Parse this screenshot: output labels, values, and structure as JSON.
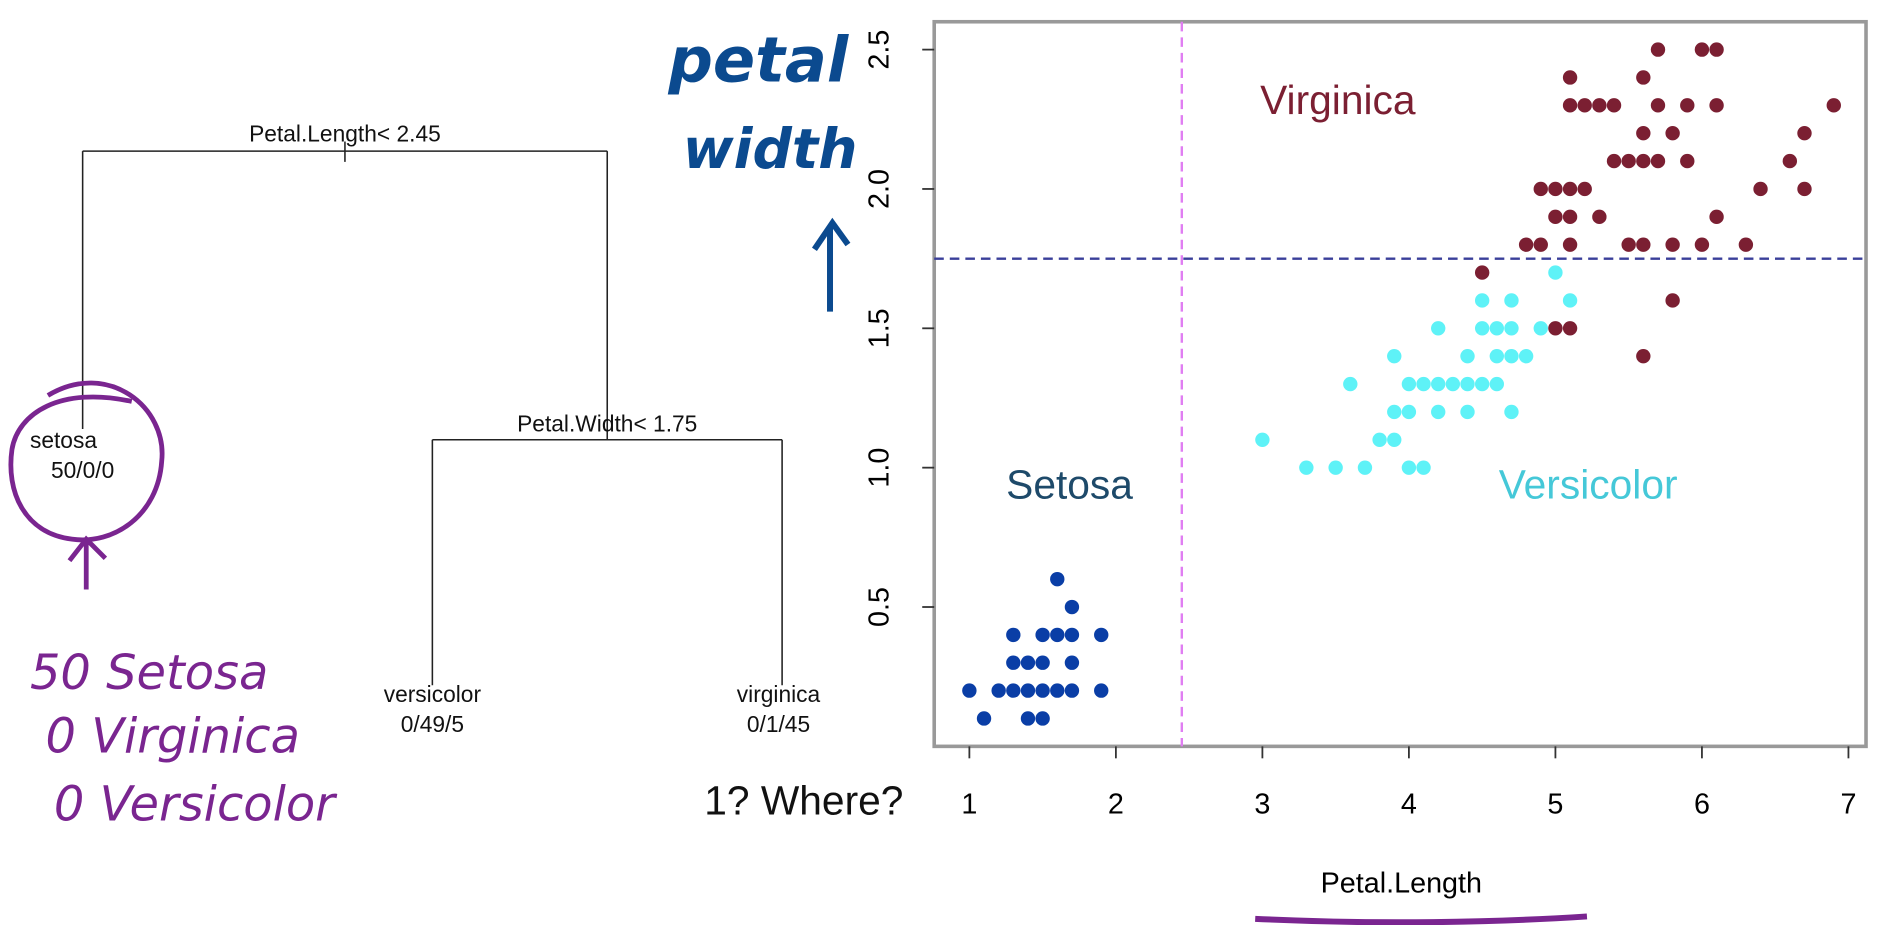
{
  "chart_data": {
    "type": "scatter",
    "xlabel": "Petal.Length",
    "xlim": [
      0.76,
      7.12
    ],
    "ylim": [
      0,
      2.6
    ],
    "xticks": [
      1,
      2,
      3,
      4,
      5,
      6,
      7
    ],
    "yticks": [
      0.5,
      1.0,
      1.5,
      2.0,
      2.5
    ],
    "series": [
      {
        "name": "Setosa",
        "color": "#0a3ea6",
        "x": [
          1.0,
          1.2,
          1.3,
          1.4,
          1.5,
          1.6,
          1.7,
          1.9,
          1.1,
          1.4,
          1.5,
          1.3,
          1.4,
          1.5,
          1.7,
          1.3,
          1.5,
          1.6,
          1.7,
          1.9,
          1.7,
          1.6
        ],
        "values": [
          0.2,
          0.2,
          0.2,
          0.2,
          0.2,
          0.2,
          0.2,
          0.2,
          0.1,
          0.1,
          0.1,
          0.3,
          0.3,
          0.3,
          0.3,
          0.4,
          0.4,
          0.4,
          0.4,
          0.4,
          0.5,
          0.6
        ]
      },
      {
        "name": "Versicolor",
        "color": "#5ef2f7",
        "x": [
          3.0,
          3.3,
          3.5,
          3.7,
          3.6,
          3.8,
          3.9,
          3.9,
          3.9,
          4.0,
          4.1,
          4.0,
          4.0,
          4.1,
          4.2,
          4.3,
          4.4,
          4.5,
          4.6,
          4.2,
          4.4,
          4.7,
          4.2,
          4.4,
          4.6,
          4.7,
          4.8,
          4.5,
          4.6,
          4.7,
          4.9,
          4.5,
          4.7,
          5.0,
          5.1
        ],
        "values": [
          1.1,
          1.0,
          1.0,
          1.0,
          1.3,
          1.1,
          1.1,
          1.4,
          1.2,
          1.0,
          1.0,
          1.3,
          1.2,
          1.3,
          1.3,
          1.3,
          1.3,
          1.3,
          1.3,
          1.2,
          1.2,
          1.2,
          1.5,
          1.4,
          1.4,
          1.4,
          1.4,
          1.5,
          1.5,
          1.5,
          1.5,
          1.6,
          1.6,
          1.7,
          1.6
        ]
      },
      {
        "name": "Virginica",
        "color": "#7b1f32",
        "x": [
          4.5,
          4.8,
          4.9,
          5.1,
          4.9,
          5.0,
          5.1,
          5.2,
          5.0,
          5.1,
          5.3,
          5.0,
          5.1,
          5.1,
          5.1,
          5.2,
          5.3,
          5.4,
          5.4,
          5.5,
          5.6,
          5.7,
          5.5,
          5.6,
          5.8,
          6.0,
          6.3,
          5.6,
          5.8,
          5.6,
          5.7,
          6.0,
          6.1,
          5.7,
          5.9,
          6.1,
          5.6,
          5.8,
          5.9,
          6.1,
          6.4,
          6.6,
          6.7,
          6.7,
          6.9
        ],
        "values": [
          1.7,
          1.8,
          1.8,
          1.8,
          2.0,
          2.0,
          2.0,
          2.0,
          1.9,
          1.9,
          1.9,
          1.5,
          1.5,
          2.4,
          2.3,
          2.3,
          2.3,
          2.3,
          2.1,
          2.1,
          2.1,
          2.1,
          1.8,
          1.8,
          1.8,
          1.8,
          1.8,
          2.2,
          2.2,
          2.4,
          2.5,
          2.5,
          2.5,
          2.3,
          2.3,
          2.3,
          1.4,
          1.6,
          2.1,
          1.9,
          2.0,
          2.1,
          2.2,
          2.0,
          2.3
        ]
      }
    ],
    "splits": [
      {
        "axis": "x",
        "value": 2.45,
        "color": "#e07ef2"
      },
      {
        "axis": "y",
        "value": 1.75,
        "color": "#3a3f9a"
      }
    ],
    "annotations": [
      {
        "text": "Virginica",
        "color": "#7b1f32"
      },
      {
        "text": "Setosa",
        "color": "#1e4a6a"
      },
      {
        "text": "Versicolor",
        "color": "#45c8d8"
      }
    ]
  },
  "tree": {
    "root": "Petal.Length< 2.45",
    "split2": "Petal.Width< 1.75",
    "leaves": [
      {
        "label": "setosa",
        "counts": "50/0/0"
      },
      {
        "label": "versicolor",
        "counts": "0/49/5"
      },
      {
        "label": "virginica",
        "counts": "0/1/45"
      }
    ]
  },
  "notes": {
    "question": "1? Where?",
    "petal": "petal",
    "width": "width",
    "lines": [
      "50 Setosa",
      "0 Virginica",
      "0 Versicolor"
    ]
  }
}
